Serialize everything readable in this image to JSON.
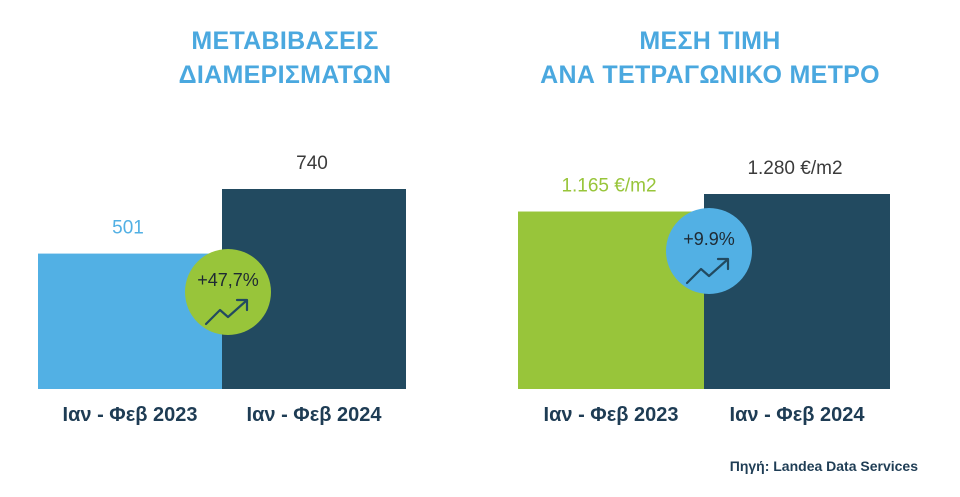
{
  "colors": {
    "title": "#4aa8df",
    "light_blue": "#52b0e4",
    "dark_navy": "#224a60",
    "green": "#98c53a",
    "label": "#1e3c54",
    "value_text": "#3b3b3b"
  },
  "source_label": "Πηγή: Landea Data Services",
  "chart_data": [
    {
      "type": "bar",
      "title_lines": [
        "ΜΕΤΑΒΙΒΑΣΕΙΣ",
        "ΔΙΑΜΕΡΙΣΜΑΤΩΝ"
      ],
      "categories": [
        "Ιαν - Φεβ 2023",
        "Ιαν - Φεβ 2024"
      ],
      "values": [
        501,
        740
      ],
      "value_labels": [
        "501",
        "740"
      ],
      "bar_colors": [
        "#52b0e4",
        "#224a60"
      ],
      "value_label_colors": [
        "#52b0e4",
        "#3b3b3b"
      ],
      "change_label": "+47,7%",
      "change_badge_color": "#98c53a",
      "change_icon": "trend-up-icon",
      "ylim": [
        0,
        740
      ]
    },
    {
      "type": "bar",
      "title_lines": [
        "ΜΕΣΗ ΤΙΜΗ",
        "ΑΝΑ ΤΕΤΡΑΓΩΝΙΚΟ ΜΕΤΡΟ"
      ],
      "categories": [
        "Ιαν - Φεβ 2023",
        "Ιαν - Φεβ 2024"
      ],
      "values": [
        1165,
        1280
      ],
      "value_labels": [
        "1.165 €/m2",
        "1.280 €/m2"
      ],
      "unit": "€/m2",
      "bar_colors": [
        "#98c53a",
        "#224a60"
      ],
      "value_label_colors": [
        "#98c53a",
        "#3b3b3b"
      ],
      "change_label": "+9.9%",
      "change_badge_color": "#52b0e4",
      "change_icon": "trend-up-icon",
      "ylim": [
        0,
        1280
      ]
    }
  ]
}
